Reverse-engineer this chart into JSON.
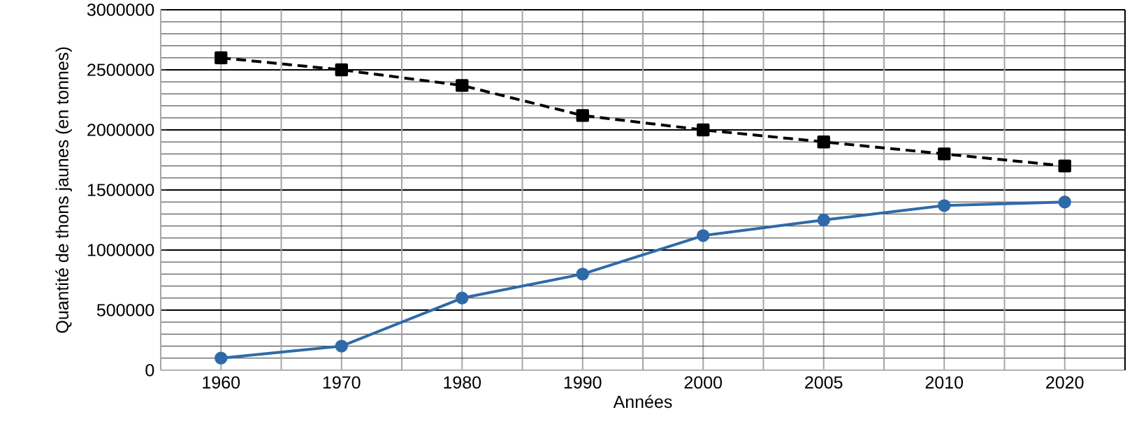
{
  "chart_data": {
    "type": "line",
    "xlabel": "Années",
    "ylabel": "Quantité de thons jaunes (en tonnes)",
    "categories": [
      "1960",
      "1970",
      "1980",
      "1990",
      "2000",
      "2005",
      "2010",
      "2020"
    ],
    "series": [
      {
        "color": "#000000",
        "marker": "square",
        "line_style": "dashed",
        "values": [
          2600000,
          2500000,
          2370000,
          2120000,
          2000000,
          1900000,
          1800000,
          1700000
        ]
      },
      {
        "color": "#2f6aa8",
        "marker": "circle",
        "line_style": "solid",
        "values": [
          100000,
          200000,
          600000,
          800000,
          1120000,
          1250000,
          1370000,
          1400000
        ]
      }
    ],
    "ylim": [
      0,
      3000000
    ],
    "yticks": [
      0,
      500000,
      1000000,
      1500000,
      2000000,
      2500000,
      3000000
    ],
    "grid": true
  }
}
